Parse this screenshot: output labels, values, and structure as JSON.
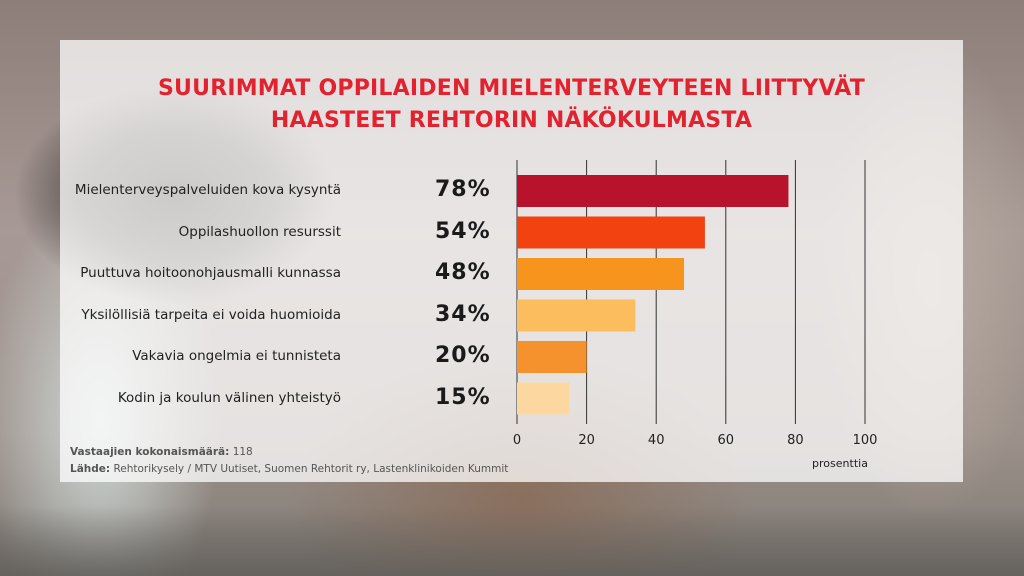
{
  "title_lines": [
    "SUURIMMAT OPPILAIDEN MIELENTERVEYTEEN LIITTYVÄT",
    "HAASTEET REHTORIN NÄKÖKULMASTA"
  ],
  "footer": {
    "respondents_label": "Vastaajien kokonaismäärä:",
    "respondents_value": "118",
    "source_label": "Lähde:",
    "source_value": "Rehtorikysely / MTV Uutiset, Suomen Rehtorit ry, Lastenklinikoiden Kummit"
  },
  "chart_data": {
    "type": "bar",
    "orientation": "horizontal",
    "categories": [
      "Mielenterveyspalveluiden kova kysyntä",
      "Oppilashuollon resurssit",
      "Puuttuva hoitoonohjausmalli kunnassa",
      "Yksilöllisiä tarpeita ei voida huomioida",
      "Vakavia ongelmia ei tunnisteta",
      "Kodin ja koulun välinen yhteistyö"
    ],
    "values": [
      78,
      54,
      48,
      34,
      20,
      15
    ],
    "value_labels": [
      "78%",
      "54%",
      "48%",
      "34%",
      "20%",
      "15%"
    ],
    "bar_colors": [
      "#b8122c",
      "#f2420f",
      "#f7941d",
      "#fbbd5e",
      "#f5922d",
      "#fdd7a0"
    ],
    "xlim": [
      0,
      100
    ],
    "xticks": [
      "0",
      "20",
      "40",
      "60",
      "80",
      "100"
    ],
    "xlabel": "prosenttia",
    "grid": true
  }
}
